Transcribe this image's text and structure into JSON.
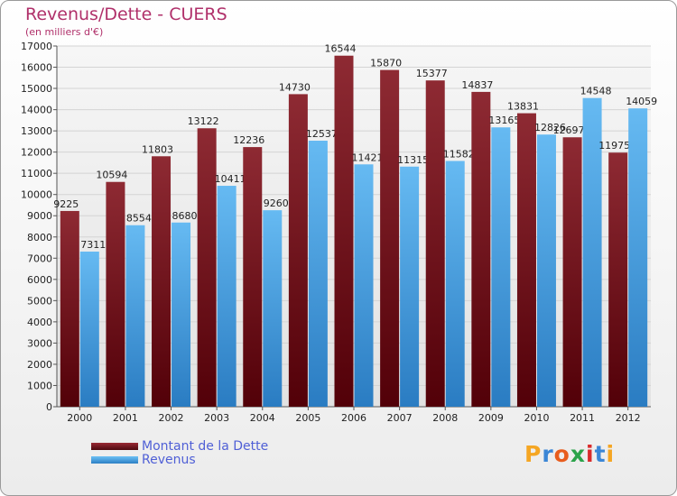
{
  "title": "Revenus/Dette - CUERS",
  "subtitle": "(en milliers d'€)",
  "logo": {
    "text": "Proxiti",
    "colors": [
      "#f5a623",
      "#3b86d6",
      "#e85d1e",
      "#2ba34a",
      "#d92b2b",
      "#3b86d6",
      "#f5a623"
    ]
  },
  "chart_data": {
    "type": "bar",
    "title": "Revenus/Dette - CUERS",
    "ylabel": "(en milliers d'€)",
    "xlabel": "",
    "ylim": [
      0,
      17000
    ],
    "yticks": [
      0,
      1000,
      2000,
      3000,
      4000,
      5000,
      6000,
      7000,
      8000,
      9000,
      10000,
      11000,
      12000,
      13000,
      14000,
      15000,
      16000,
      17000
    ],
    "grid": true,
    "legend": "bottom-left",
    "categories": [
      "2000",
      "2001",
      "2002",
      "2003",
      "2004",
      "2005",
      "2006",
      "2007",
      "2008",
      "2009",
      "2010",
      "2011",
      "2012"
    ],
    "series": [
      {
        "name": "Montant de la Dette",
        "color": "#7a1e26",
        "values": [
          9225,
          10594,
          11803,
          13122,
          12236,
          14730,
          16544,
          15870,
          15377,
          14837,
          13831,
          12697,
          11975
        ],
        "labels": [
          "9225",
          "10594",
          "11803",
          "13122",
          "12236",
          "14730",
          "16544",
          "15870",
          "15377",
          "14837",
          "13831",
          "12697",
          "11975"
        ]
      },
      {
        "name": "Revenus",
        "color": "#4aa3e6",
        "values": [
          7311,
          8554,
          8680,
          10411,
          9260,
          12537,
          11421,
          11315,
          11582,
          13165,
          12826,
          14548,
          14059
        ],
        "labels": [
          "7311",
          "8554",
          "8680",
          "10411",
          "9260",
          "12537",
          "11421",
          "11315",
          "11582",
          "13165",
          "12826",
          "14548",
          "14059"
        ]
      }
    ]
  }
}
